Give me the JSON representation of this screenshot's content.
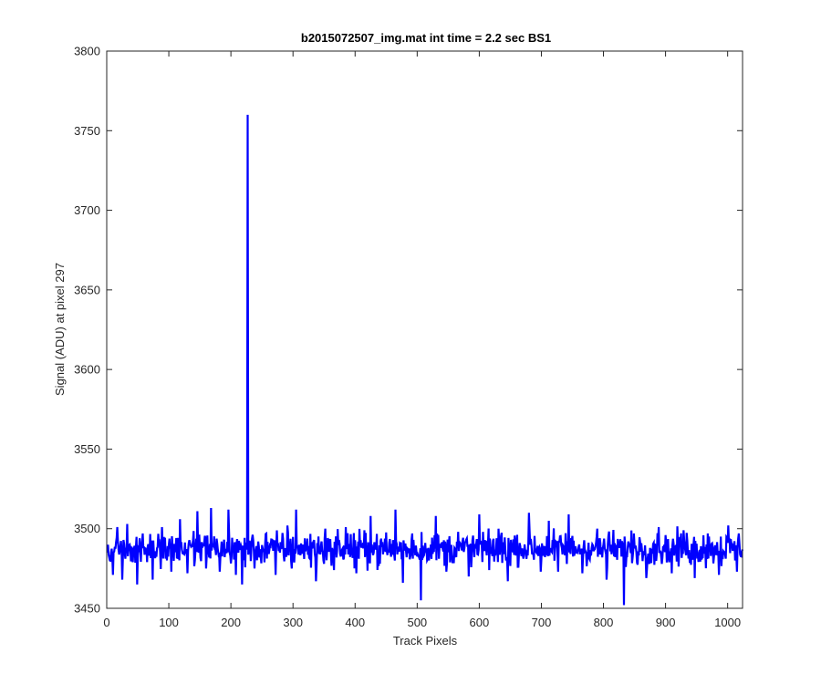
{
  "chart_data": {
    "type": "line",
    "title": "b2015072507_img.mat int time = 2.2 sec   BS1",
    "xlabel": "Track Pixels",
    "ylabel": "Signal (ADU) at pixel 297",
    "xlim": [
      0,
      1024
    ],
    "ylim": [
      3450,
      3800
    ],
    "xticks": [
      0,
      100,
      200,
      300,
      400,
      500,
      600,
      700,
      800,
      900,
      1000
    ],
    "yticks": [
      3450,
      3500,
      3550,
      3600,
      3650,
      3700,
      3750,
      3800
    ],
    "grid": false,
    "line_color": "#0000ff",
    "noise": {
      "x_start": 1,
      "x_end": 1024,
      "baseline": 3487,
      "typical_low": 3472,
      "typical_high": 3503,
      "min": 3455,
      "max": 3513
    },
    "spike": {
      "x": 227,
      "y": 3760
    },
    "series": [
      {
        "values_note_points": [
          [
            1,
            3485
          ],
          [
            10,
            3471
          ],
          [
            17,
            3501
          ],
          [
            25,
            3468
          ],
          [
            33,
            3503
          ],
          [
            42,
            3479
          ],
          [
            49,
            3465
          ],
          [
            58,
            3497
          ],
          [
            74,
            3468
          ],
          [
            89,
            3501
          ],
          [
            104,
            3473
          ],
          [
            118,
            3506
          ],
          [
            130,
            3472
          ],
          [
            146,
            3511
          ],
          [
            160,
            3475
          ],
          [
            168,
            3513
          ],
          [
            182,
            3473
          ],
          [
            196,
            3512
          ],
          [
            208,
            3471
          ],
          [
            218,
            3465
          ],
          [
            225,
            3490
          ],
          [
            227,
            3760
          ],
          [
            229,
            3486
          ],
          [
            238,
            3475
          ],
          [
            257,
            3497
          ],
          [
            272,
            3471
          ],
          [
            291,
            3502
          ],
          [
            298,
            3475
          ],
          [
            305,
            3512
          ],
          [
            318,
            3481
          ],
          [
            337,
            3467
          ],
          [
            352,
            3500
          ],
          [
            366,
            3474
          ],
          [
            385,
            3501
          ],
          [
            402,
            3472
          ],
          [
            425,
            3508
          ],
          [
            440,
            3478
          ],
          [
            465,
            3512
          ],
          [
            477,
            3466
          ],
          [
            492,
            3497
          ],
          [
            506,
            3455
          ],
          [
            518,
            3488
          ],
          [
            530,
            3508
          ],
          [
            547,
            3473
          ],
          [
            566,
            3498
          ],
          [
            583,
            3470
          ],
          [
            600,
            3509
          ],
          [
            616,
            3474
          ],
          [
            631,
            3500
          ],
          [
            646,
            3467
          ],
          [
            665,
            3491
          ],
          [
            680,
            3510
          ],
          [
            699,
            3473
          ],
          [
            712,
            3505
          ],
          [
            727,
            3473
          ],
          [
            744,
            3509
          ],
          [
            766,
            3472
          ],
          [
            790,
            3500
          ],
          [
            805,
            3468
          ],
          [
            818,
            3491
          ],
          [
            833,
            3452
          ],
          [
            849,
            3497
          ],
          [
            869,
            3469
          ],
          [
            889,
            3501
          ],
          [
            910,
            3472
          ],
          [
            929,
            3499
          ],
          [
            947,
            3469
          ],
          [
            968,
            3497
          ],
          [
            986,
            3471
          ],
          [
            1001,
            3502
          ],
          [
            1015,
            3473
          ],
          [
            1024,
            3487
          ]
        ]
      }
    ]
  }
}
